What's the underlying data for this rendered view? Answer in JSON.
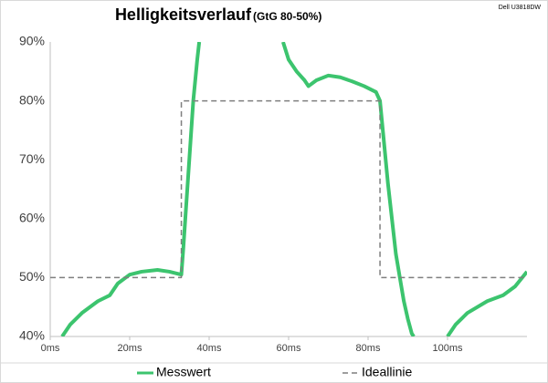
{
  "chart_data": {
    "type": "line",
    "title": "Helligkeitsverlauf",
    "subtitle": "(GtG 80-50%)",
    "annotation": "Dell U3818DW",
    "xlim": [
      0,
      120
    ],
    "xticks": [
      {
        "value": 0,
        "label": "0ms"
      },
      {
        "value": 20,
        "label": "20ms"
      },
      {
        "value": 40,
        "label": "40ms"
      },
      {
        "value": 60,
        "label": "60ms"
      },
      {
        "value": 80,
        "label": "80ms"
      },
      {
        "value": 100,
        "label": "100ms"
      }
    ],
    "ylim": [
      40,
      90
    ],
    "yticks": [
      {
        "value": 40,
        "label": "40%"
      },
      {
        "value": 50,
        "label": "50%"
      },
      {
        "value": 60,
        "label": "60%"
      },
      {
        "value": 70,
        "label": "70%"
      },
      {
        "value": 80,
        "label": "80%"
      },
      {
        "value": 90,
        "label": "90%"
      }
    ],
    "grid": false,
    "legend": "bottom",
    "series": [
      {
        "name": "Messwert",
        "color": "#3cc46e",
        "dash": false,
        "x": [
          3,
          5,
          8,
          12,
          15,
          17,
          20,
          23,
          27,
          30,
          33,
          33.5,
          34,
          34.5,
          35,
          35.5,
          36,
          37,
          37.5,
          45,
          58.6,
          60,
          62,
          64,
          65,
          67,
          70,
          73,
          76,
          79,
          82,
          83,
          84,
          85,
          86,
          87,
          88,
          89,
          90,
          91,
          91.5,
          95,
          100,
          102,
          105,
          110,
          114,
          117,
          120
        ],
        "values": [
          40,
          42,
          44,
          46,
          47,
          49,
          50.5,
          51,
          51.3,
          51,
          50.5,
          55,
          60,
          65,
          70,
          75,
          80,
          87,
          90,
          null,
          90,
          87,
          85,
          83.5,
          82.5,
          83.5,
          84.3,
          84,
          83.3,
          82.5,
          81.5,
          80,
          73,
          66,
          60,
          54,
          50,
          46,
          43,
          40.5,
          40,
          null,
          40,
          42,
          44,
          46,
          47,
          48.5,
          51
        ]
      },
      {
        "name": "Ideallinie",
        "color": "#7f7f7f",
        "dash": true,
        "x": [
          0,
          33,
          33,
          83,
          83,
          120
        ],
        "values": [
          50,
          50,
          80,
          80,
          50,
          50
        ]
      }
    ]
  }
}
